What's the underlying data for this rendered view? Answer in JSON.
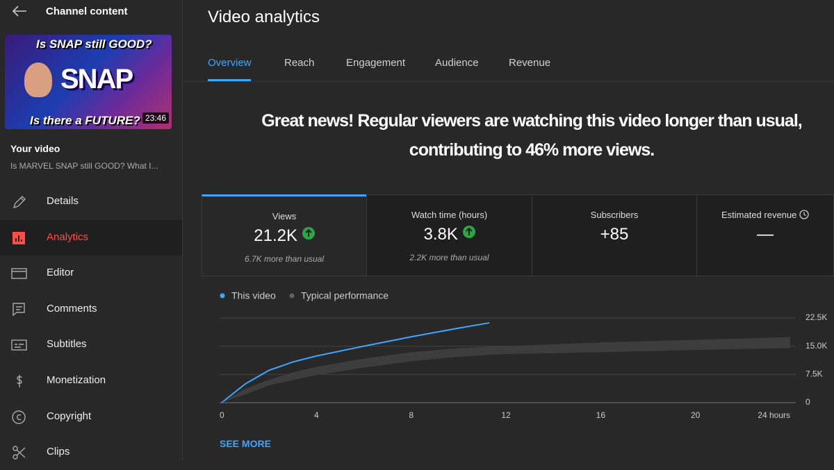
{
  "sidebar": {
    "title": "Channel content",
    "thumbnail": {
      "top_text": "Is SNAP still GOOD?",
      "logo_text": "SNAP",
      "bottom_text": "Is there a FUTURE?",
      "duration": "23:46"
    },
    "your_video_label": "Your video",
    "video_title": "Is MARVEL SNAP still GOOD? What I...",
    "menu": [
      "Details",
      "Analytics",
      "Editor",
      "Comments",
      "Subtitles",
      "Monetization",
      "Copyright",
      "Clips"
    ]
  },
  "header": {
    "title": "Video analytics"
  },
  "tabs": [
    "Overview",
    "Reach",
    "Engagement",
    "Audience",
    "Revenue"
  ],
  "headline": "Great news! Regular viewers are watching this video longer than usual, contributing to 46% more views.",
  "metrics": [
    {
      "label": "Views",
      "value": "21.2K",
      "note": "6.7K more than usual"
    },
    {
      "label": "Watch time (hours)",
      "value": "3.8K",
      "note": "2.2K more than usual"
    },
    {
      "label": "Subscribers",
      "value": "+85"
    },
    {
      "label": "Estimated revenue",
      "value": "—"
    }
  ],
  "chart_data": {
    "type": "line",
    "x": [
      0,
      1,
      2,
      3,
      4,
      6,
      8,
      10,
      11.3,
      12,
      16,
      20,
      24
    ],
    "series": [
      {
        "name": "This video",
        "color": "#3ea6ff",
        "values": [
          0,
          5000,
          8600,
          10800,
          12400,
          15000,
          17500,
          19800,
          21200,
          null,
          null,
          null,
          null
        ]
      },
      {
        "name": "Typical performance",
        "color": "#606060",
        "band_color": "#3d3d3d",
        "low": [
          0,
          2200,
          4600,
          6000,
          7300,
          9300,
          11000,
          12200,
          12700,
          12900,
          13400,
          14000,
          14500
        ],
        "high": [
          0,
          3700,
          6100,
          8000,
          9500,
          11700,
          13400,
          14500,
          14900,
          15000,
          16000,
          16700,
          17400
        ]
      }
    ],
    "xlim": [
      0,
      24
    ],
    "xticks": [
      0,
      4,
      8,
      12,
      16,
      20,
      {
        "value": 24,
        "label": "24 hours"
      }
    ],
    "ylim": [
      0,
      22500
    ],
    "yticks": [
      0,
      {
        "value": 7500,
        "label": "7.5K"
      },
      {
        "value": 15000,
        "label": "15.0K"
      },
      {
        "value": 22500,
        "label": "22.5K"
      }
    ],
    "grid": true
  },
  "see_more": "SEE MORE"
}
